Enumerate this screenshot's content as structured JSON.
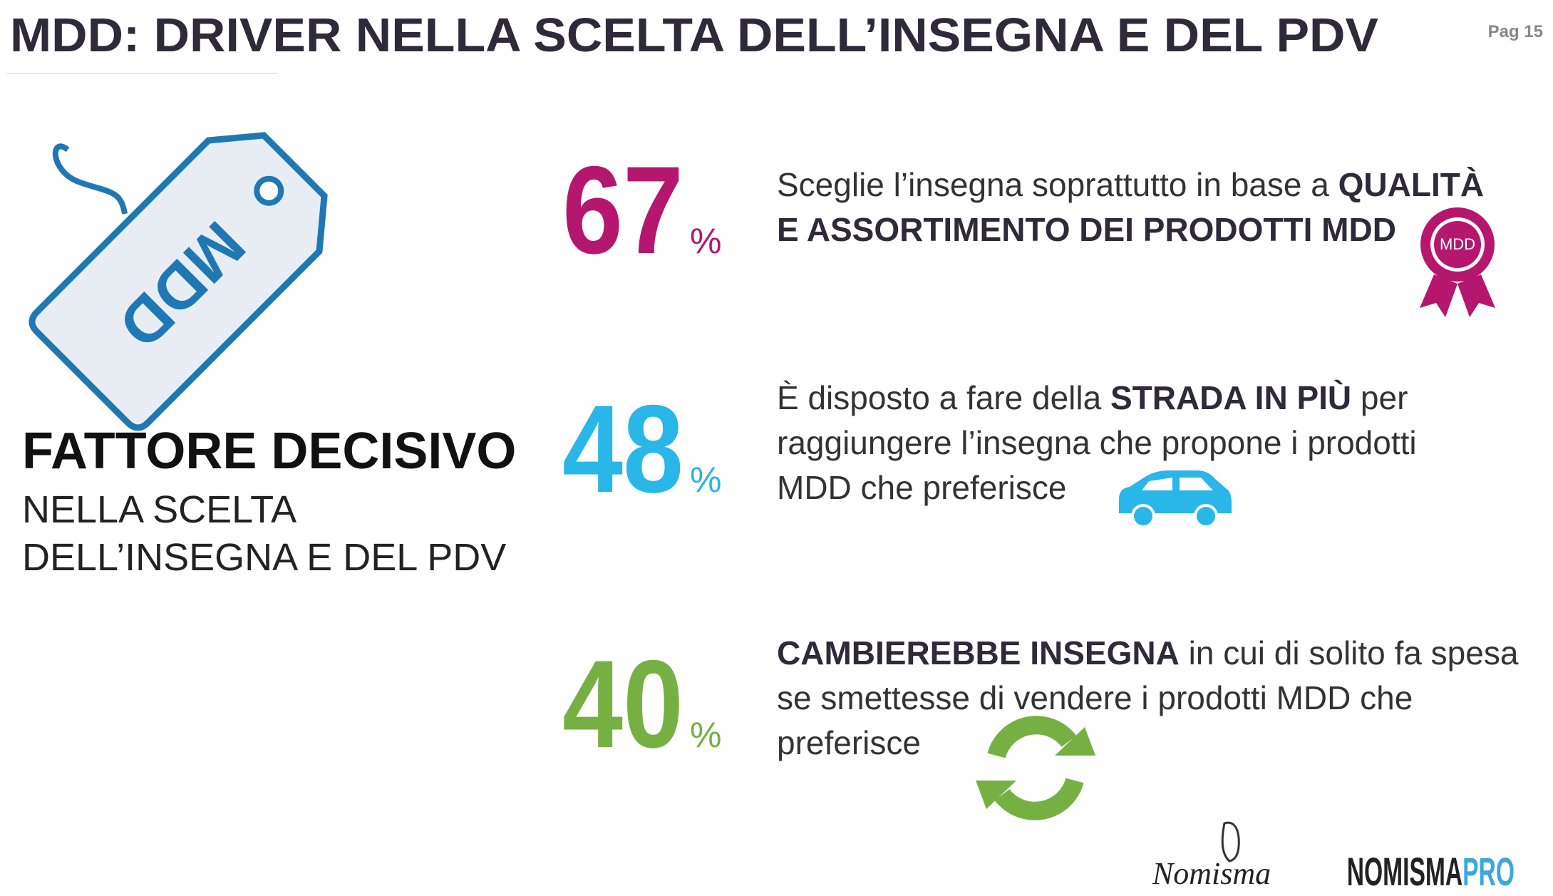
{
  "header": {
    "title": "MDD: DRIVER NELLA SCELTA DELL’INSEGNA E DEL PDV",
    "page": "Pag 15"
  },
  "left": {
    "tag_label": "MDD",
    "headline": "FATTORE DECISIVO",
    "lines": [
      "NELLA SCELTA",
      "DELL’INSEGNA E DEL PDV"
    ]
  },
  "stats": [
    {
      "value": "67",
      "unit": "%",
      "color": "#b5176f",
      "lines": [
        [
          {
            "text": "Sceglie l’insegna soprattutto in base a ",
            "bold": false
          },
          {
            "text": "QUALITÀ",
            "bold": true
          }
        ],
        [
          {
            "text": "E ASSORTIMENTO DEI PRODOTTI MDD",
            "bold": true
          }
        ]
      ],
      "badge": "MDD"
    },
    {
      "value": "48",
      "unit": "%",
      "color": "#29b6e8",
      "lines": [
        [
          {
            "text": "È disposto a fare della ",
            "bold": false
          },
          {
            "text": "STRADA IN PIÙ",
            "bold": true
          },
          {
            "text": " per",
            "bold": false
          }
        ],
        [
          {
            "text": "raggiungere l’insegna che propone i prodotti",
            "bold": false
          }
        ],
        [
          {
            "text": "MDD che preferisce",
            "bold": false
          }
        ]
      ]
    },
    {
      "value": "40",
      "unit": "%",
      "color": "#76b043",
      "lines": [
        [
          {
            "text": "CAMBIEREBBE INSEGNA",
            "bold": true
          },
          {
            "text": " in cui di solito fa spesa",
            "bold": false
          }
        ],
        [
          {
            "text": "se smettesse di vendere i prodotti MDD che",
            "bold": false
          }
        ],
        [
          {
            "text": "preferisce",
            "bold": false
          }
        ]
      ]
    }
  ],
  "footer": {
    "logo": "Nomisma",
    "brand": "NOMISMA",
    "brand_suffix": "PRO"
  }
}
